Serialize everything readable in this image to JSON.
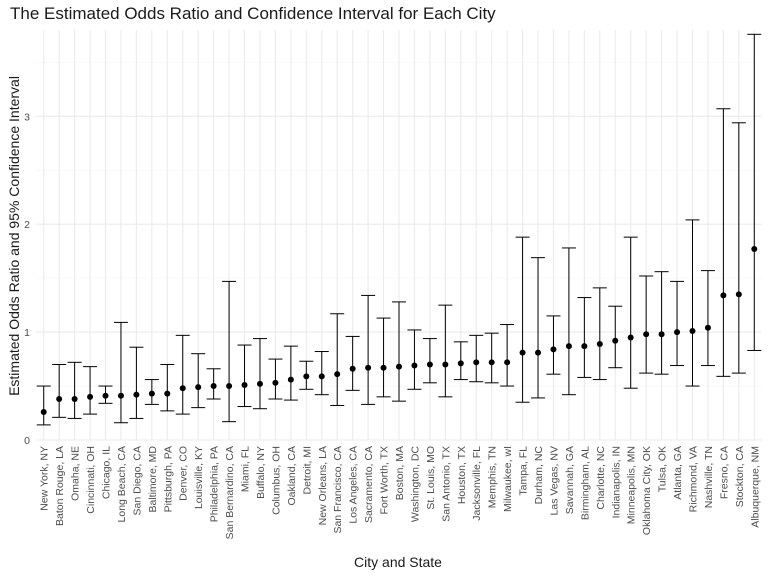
{
  "chart_data": {
    "type": "scatter",
    "title": "The Estimated Odds Ratio and Confidence Interval for Each City",
    "xlabel": "City and State",
    "ylabel": "Estimated Odds Ratio and 95% Confidence Interval",
    "ylim": [
      0,
      3.8
    ],
    "yticks": [
      0,
      1,
      2,
      3
    ],
    "grid": true,
    "legend": "none",
    "point_color": "#000000",
    "grid_major_color": "#ebebeb",
    "grid_minor_color": "#f5f5f5",
    "categories": [
      "New York, NY",
      "Baton Rouge, LA",
      "Omaha, NE",
      "Cincinnati, OH",
      "Chicago, IL",
      "Long Beach, CA",
      "San Diego, CA",
      "Baltimore, MD",
      "Pittsburgh, PA",
      "Denver, CO",
      "Louisville, KY",
      "Philadelphia, PA",
      "San Bernardino, CA",
      "Miami, FL",
      "Buffalo, NY",
      "Columbus, OH",
      "Oakland, CA",
      "Detroit, MI",
      "New Orleans, LA",
      "San Francisco, CA",
      "Los Angeles, CA",
      "Sacramento, CA",
      "Fort Worth, TX",
      "Boston, MA",
      "Washington, DC",
      "St. Louis, MO",
      "San Antonio, TX",
      "Houston, TX",
      "Jacksonville, FL",
      "Memphis, TN",
      "Milwaukee, wI",
      "Tampa, FL",
      "Durham, NC",
      "Las Vegas, NV",
      "Savannah, GA",
      "Birmingham, AL",
      "Charlotte, NC",
      "Indianapolis, IN",
      "Minneapolis, MN",
      "Oklahoma City, OK",
      "Tulsa, OK",
      "Atlanta, GA",
      "Richmond, VA",
      "Nashville, TN",
      "Fresno, CA",
      "Stockton, CA",
      "Albuquerque, NM"
    ],
    "estimate": [
      0.26,
      0.38,
      0.38,
      0.4,
      0.41,
      0.41,
      0.42,
      0.43,
      0.43,
      0.48,
      0.49,
      0.5,
      0.5,
      0.51,
      0.52,
      0.53,
      0.56,
      0.59,
      0.59,
      0.61,
      0.66,
      0.67,
      0.67,
      0.68,
      0.69,
      0.7,
      0.7,
      0.71,
      0.72,
      0.72,
      0.72,
      0.81,
      0.81,
      0.84,
      0.87,
      0.87,
      0.89,
      0.92,
      0.95,
      0.98,
      0.98,
      1.0,
      1.01,
      1.04,
      1.34,
      1.35,
      1.77
    ],
    "ci_lower": [
      0.14,
      0.21,
      0.2,
      0.24,
      0.34,
      0.16,
      0.2,
      0.33,
      0.27,
      0.24,
      0.3,
      0.38,
      0.17,
      0.31,
      0.29,
      0.38,
      0.37,
      0.47,
      0.42,
      0.32,
      0.46,
      0.33,
      0.4,
      0.36,
      0.47,
      0.53,
      0.4,
      0.56,
      0.54,
      0.53,
      0.5,
      0.35,
      0.39,
      0.61,
      0.42,
      0.58,
      0.56,
      0.67,
      0.48,
      0.62,
      0.61,
      0.69,
      0.5,
      0.69,
      0.59,
      0.62,
      0.83
    ],
    "ci_upper": [
      0.5,
      0.7,
      0.72,
      0.68,
      0.5,
      1.09,
      0.86,
      0.56,
      0.7,
      0.97,
      0.8,
      0.66,
      1.47,
      0.88,
      0.94,
      0.75,
      0.87,
      0.73,
      0.82,
      1.17,
      0.96,
      1.34,
      1.13,
      1.28,
      1.02,
      0.94,
      1.25,
      0.91,
      0.97,
      0.99,
      1.07,
      1.88,
      1.69,
      1.15,
      1.78,
      1.32,
      1.41,
      1.24,
      1.88,
      1.52,
      1.56,
      1.47,
      2.04,
      1.57,
      3.07,
      2.94,
      3.76
    ]
  }
}
